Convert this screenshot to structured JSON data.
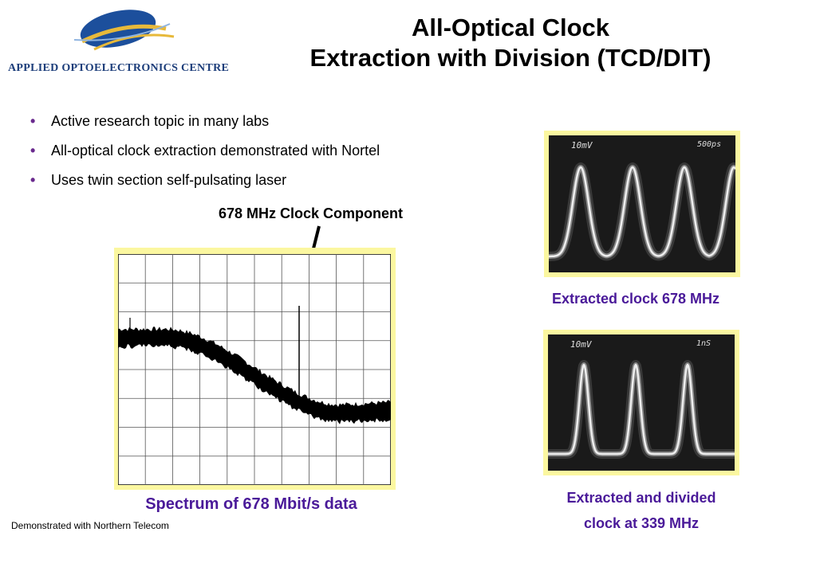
{
  "header": {
    "logo_text": "APPLIED OPTOELECTRONICS CENTRE",
    "title_line1": "All-Optical Clock",
    "title_line2": "Extraction with Division (TCD/DIT)"
  },
  "bullets": [
    "Active research topic in many labs",
    "All-optical clock extraction demonstrated with Nortel",
    "Uses twin section self-pulsating laser"
  ],
  "annotation": "678 MHz Clock Component",
  "spectrum": {
    "caption": "Spectrum of 678 Mbit/s data"
  },
  "scope1": {
    "label_left": "10mV",
    "label_right": "500ps",
    "caption": "Extracted clock 678 MHz"
  },
  "scope2": {
    "label_left": "10mV",
    "label_right": "1nS",
    "caption_line1": "Extracted  and divided",
    "caption_line2": "clock at 339 MHz"
  },
  "footnote": "Demonstrated with Northern Telecom",
  "colors": {
    "caption": "#4a1a99",
    "frame": "#fbf7a0",
    "bullet": "#6a2a8e",
    "logo": "#1c3d7a"
  }
}
